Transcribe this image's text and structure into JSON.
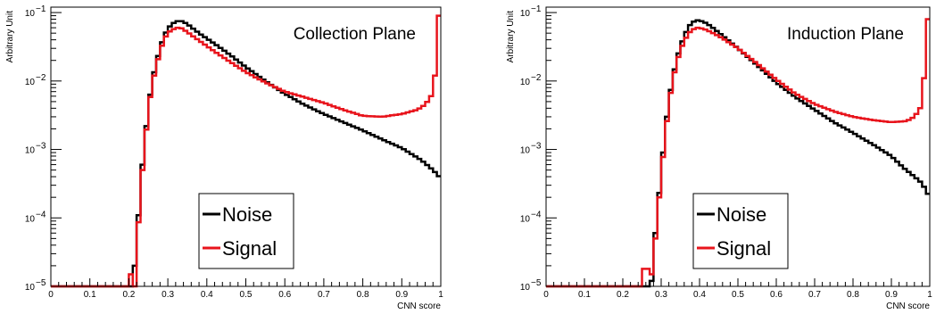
{
  "chart_data": [
    {
      "type": "histogram",
      "title": "Collection Plane",
      "xlabel": "CNN score",
      "ylabel": "Arbitrary Unit",
      "xlim": [
        0,
        1
      ],
      "ylim": [
        1e-05,
        0.12
      ],
      "yscale": "log",
      "x_ticks": [
        "0",
        "0.1",
        "0.2",
        "0.3",
        "0.4",
        "0.5",
        "0.6",
        "0.7",
        "0.8",
        "0.9",
        "1"
      ],
      "y_ticks": [
        {
          "mantissa": "10",
          "exponent": "−5",
          "value": 1e-05
        },
        {
          "mantissa": "10",
          "exponent": "−4",
          "value": 0.0001
        },
        {
          "mantissa": "10",
          "exponent": "−3",
          "value": 0.001
        },
        {
          "mantissa": "10",
          "exponent": "−2",
          "value": 0.01
        },
        {
          "mantissa": "10",
          "exponent": "−1",
          "value": 0.1
        }
      ],
      "grid": false,
      "legend_position": "bottom-center",
      "bins": 100,
      "series": [
        {
          "name": "Noise",
          "color": "#000000",
          "knots": [
            [
              0.0,
              1e-05
            ],
            [
              0.21,
              1e-05
            ],
            [
              0.215,
              2e-05
            ],
            [
              0.22,
              4e-05
            ],
            [
              0.23,
              0.0003
            ],
            [
              0.24,
              0.0012
            ],
            [
              0.25,
              0.004
            ],
            [
              0.26,
              0.01
            ],
            [
              0.27,
              0.018
            ],
            [
              0.28,
              0.03
            ],
            [
              0.29,
              0.045
            ],
            [
              0.3,
              0.058
            ],
            [
              0.31,
              0.068
            ],
            [
              0.325,
              0.075
            ],
            [
              0.335,
              0.075
            ],
            [
              0.35,
              0.068
            ],
            [
              0.38,
              0.05
            ],
            [
              0.42,
              0.035
            ],
            [
              0.46,
              0.024
            ],
            [
              0.5,
              0.016
            ],
            [
              0.55,
              0.01
            ],
            [
              0.6,
              0.0065
            ],
            [
              0.65,
              0.0045
            ],
            [
              0.7,
              0.0033
            ],
            [
              0.75,
              0.0025
            ],
            [
              0.8,
              0.0019
            ],
            [
              0.85,
              0.0014
            ],
            [
              0.9,
              0.00105
            ],
            [
              0.95,
              0.0007
            ],
            [
              0.98,
              0.0005
            ],
            [
              1.0,
              0.00038
            ]
          ]
        },
        {
          "name": "Signal",
          "color": "#e8141c",
          "knots": [
            [
              0.0,
              1e-05
            ],
            [
              0.2,
              1e-05
            ],
            [
              0.205,
              1.5e-05
            ],
            [
              0.21,
              1.5e-05
            ],
            [
              0.215,
              1e-05
            ],
            [
              0.22,
              3e-05
            ],
            [
              0.23,
              0.00025
            ],
            [
              0.24,
              0.001
            ],
            [
              0.25,
              0.0038
            ],
            [
              0.26,
              0.009
            ],
            [
              0.27,
              0.016
            ],
            [
              0.28,
              0.027
            ],
            [
              0.29,
              0.04
            ],
            [
              0.3,
              0.05
            ],
            [
              0.31,
              0.056
            ],
            [
              0.325,
              0.06
            ],
            [
              0.335,
              0.059
            ],
            [
              0.35,
              0.052
            ],
            [
              0.38,
              0.039
            ],
            [
              0.42,
              0.027
            ],
            [
              0.46,
              0.019
            ],
            [
              0.5,
              0.0135
            ],
            [
              0.55,
              0.0095
            ],
            [
              0.6,
              0.007
            ],
            [
              0.65,
              0.0058
            ],
            [
              0.7,
              0.0048
            ],
            [
              0.75,
              0.0038
            ],
            [
              0.8,
              0.0031
            ],
            [
              0.85,
              0.003
            ],
            [
              0.9,
              0.0033
            ],
            [
              0.94,
              0.0038
            ],
            [
              0.96,
              0.0045
            ],
            [
              0.975,
              0.006
            ],
            [
              0.985,
              0.012
            ],
            [
              0.99,
              0.09
            ],
            [
              1.0,
              0.09
            ]
          ]
        }
      ]
    },
    {
      "type": "histogram",
      "title": "Induction Plane",
      "xlabel": "CNN score",
      "ylabel": "Arbitrary Unit",
      "xlim": [
        0,
        1
      ],
      "ylim": [
        1e-05,
        0.12
      ],
      "yscale": "log",
      "x_ticks": [
        "0",
        "0.1",
        "0.2",
        "0.3",
        "0.4",
        "0.5",
        "0.6",
        "0.7",
        "0.8",
        "0.9",
        "1"
      ],
      "y_ticks": [
        {
          "mantissa": "10",
          "exponent": "−5",
          "value": 1e-05
        },
        {
          "mantissa": "10",
          "exponent": "−4",
          "value": 0.0001
        },
        {
          "mantissa": "10",
          "exponent": "−3",
          "value": 0.001
        },
        {
          "mantissa": "10",
          "exponent": "−2",
          "value": 0.01
        },
        {
          "mantissa": "10",
          "exponent": "−1",
          "value": 0.1
        }
      ],
      "grid": false,
      "legend_position": "bottom-center",
      "bins": 100,
      "series": [
        {
          "name": "Noise",
          "color": "#000000",
          "knots": [
            [
              0.0,
              1e-05
            ],
            [
              0.27,
              1e-05
            ],
            [
              0.275,
              1.2e-05
            ],
            [
              0.28,
              3e-05
            ],
            [
              0.29,
              0.00012
            ],
            [
              0.3,
              0.00045
            ],
            [
              0.31,
              0.0018
            ],
            [
              0.32,
              0.005
            ],
            [
              0.33,
              0.011
            ],
            [
              0.34,
              0.02
            ],
            [
              0.35,
              0.032
            ],
            [
              0.36,
              0.045
            ],
            [
              0.37,
              0.06
            ],
            [
              0.38,
              0.072
            ],
            [
              0.395,
              0.077
            ],
            [
              0.41,
              0.074
            ],
            [
              0.43,
              0.063
            ],
            [
              0.46,
              0.046
            ],
            [
              0.5,
              0.03
            ],
            [
              0.55,
              0.017
            ],
            [
              0.6,
              0.0095
            ],
            [
              0.65,
              0.0058
            ],
            [
              0.7,
              0.0038
            ],
            [
              0.75,
              0.0025
            ],
            [
              0.8,
              0.00175
            ],
            [
              0.85,
              0.0012
            ],
            [
              0.9,
              0.0008
            ],
            [
              0.93,
              0.00055
            ],
            [
              0.96,
              0.0004
            ],
            [
              0.98,
              0.00032
            ],
            [
              1.0,
              0.0002
            ]
          ]
        },
        {
          "name": "Signal",
          "color": "#e8141c",
          "knots": [
            [
              0.0,
              1e-05
            ],
            [
              0.25,
              1e-05
            ],
            [
              0.255,
              1.8e-05
            ],
            [
              0.265,
              1.8e-05
            ],
            [
              0.27,
              1e-05
            ],
            [
              0.275,
              1.5e-05
            ],
            [
              0.28,
              2.5e-05
            ],
            [
              0.29,
              0.0001
            ],
            [
              0.3,
              0.0004
            ],
            [
              0.31,
              0.0015
            ],
            [
              0.32,
              0.0045
            ],
            [
              0.33,
              0.01
            ],
            [
              0.34,
              0.018
            ],
            [
              0.35,
              0.028
            ],
            [
              0.36,
              0.038
            ],
            [
              0.37,
              0.048
            ],
            [
              0.38,
              0.056
            ],
            [
              0.395,
              0.06
            ],
            [
              0.41,
              0.058
            ],
            [
              0.43,
              0.052
            ],
            [
              0.46,
              0.042
            ],
            [
              0.5,
              0.03
            ],
            [
              0.55,
              0.018
            ],
            [
              0.6,
              0.0105
            ],
            [
              0.65,
              0.0065
            ],
            [
              0.7,
              0.0046
            ],
            [
              0.75,
              0.0036
            ],
            [
              0.8,
              0.003
            ],
            [
              0.85,
              0.0027
            ],
            [
              0.9,
              0.0025
            ],
            [
              0.94,
              0.0026
            ],
            [
              0.96,
              0.003
            ],
            [
              0.975,
              0.004
            ],
            [
              0.985,
              0.011
            ],
            [
              0.99,
              0.08
            ],
            [
              1.0,
              0.08
            ]
          ]
        }
      ]
    }
  ]
}
